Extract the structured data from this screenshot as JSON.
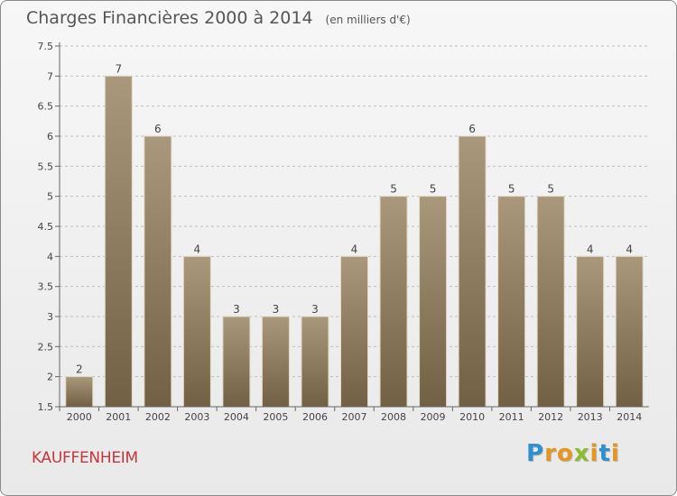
{
  "title": "Charges Financières 2000 à 2014",
  "subtitle": "(en milliers d'€)",
  "location": "KAUFFENHEIM",
  "brand": {
    "letters": [
      "P",
      "r",
      "o",
      "x",
      "i",
      "t",
      "i"
    ],
    "colors": [
      "#2f8fcf",
      "#e6961f",
      "#e6961f",
      "#8dbb2a",
      "#e6961f",
      "#2f8fcf",
      "#e6961f"
    ]
  },
  "colors": {
    "bar_top": "#a9987c",
    "bar_bottom": "#726044",
    "bar_edge": "#e2d9c6",
    "grid": "#bdbdbd",
    "axis": "#666666",
    "text": "#444444",
    "location": "#c2373d"
  },
  "chart_data": {
    "type": "bar",
    "title": "Charges Financières 2000 à 2014",
    "subtitle": "(en milliers d'€)",
    "categories": [
      "2000",
      "2001",
      "2002",
      "2003",
      "2004",
      "2005",
      "2006",
      "2007",
      "2008",
      "2009",
      "2010",
      "2011",
      "2012",
      "2013",
      "2014"
    ],
    "values": [
      2,
      7,
      6,
      4,
      3,
      3,
      3,
      4,
      5,
      5,
      6,
      5,
      5,
      4,
      4
    ],
    "data_labels": [
      "2",
      "7",
      "6",
      "4",
      "3",
      "3",
      "3",
      "4",
      "5",
      "5",
      "6",
      "5",
      "5",
      "4",
      "4"
    ],
    "ylim": [
      1.5,
      7.5
    ],
    "yticks": [
      "1.5",
      "2",
      "2.5",
      "3",
      "3.5",
      "4",
      "4.5",
      "5",
      "5.5",
      "6",
      "6.5",
      "7",
      "7.5"
    ],
    "grid": "horizontal dashed",
    "legend": "none"
  }
}
